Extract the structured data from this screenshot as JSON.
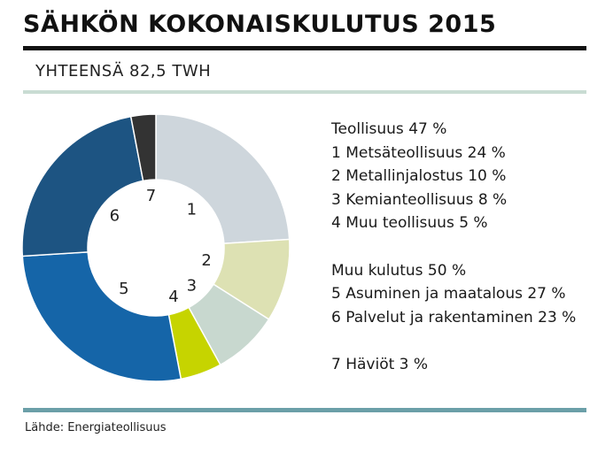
{
  "title": "SÄHKÖN KOKONAISKULUTUS 2015",
  "subtitle": "YHTEENSÄ 82,5 TWH",
  "source": "Lähde: Energiateollisuus",
  "legend": {
    "industry_total": "Teollisuus 47 %",
    "item1": "1 Metsäteollisuus 24 %",
    "item2": "2 Metallinjalostus 10 %",
    "item3": "3 Kemianteollisuus 8 %",
    "item4": "4 Muu teollisuus 5 %",
    "other_total": "Muu kulutus 50 %",
    "item5": "5 Asuminen ja maatalous 27 %",
    "item6": "6 Palvelut ja rakentaminen 23 %",
    "item7": "7 Häviöt 3 %"
  },
  "chart_data": {
    "type": "pie",
    "subtype": "donut",
    "title": "SÄHKÖN KOKONAISKULUTUS 2015",
    "subtitle": "YHTEENSÄ 82,5 TWH",
    "unit": "%",
    "slices": [
      {
        "label": "1",
        "name": "Metsäteollisuus",
        "value": 24,
        "color": "#ced6dc"
      },
      {
        "label": "2",
        "name": "Metallinjalostus",
        "value": 10,
        "color": "#dde1b3"
      },
      {
        "label": "3",
        "name": "Kemianteollisuus",
        "value": 8,
        "color": "#c8d8cf"
      },
      {
        "label": "4",
        "name": "Muu teollisuus",
        "value": 5,
        "color": "#c6d400"
      },
      {
        "label": "5",
        "name": "Asuminen ja maatalous",
        "value": 27,
        "color": "#1565a8"
      },
      {
        "label": "6",
        "name": "Palvelut ja rakentaminen",
        "value": 23,
        "color": "#1d5482"
      },
      {
        "label": "7",
        "name": "Häviöt",
        "value": 3,
        "color": "#333333"
      }
    ],
    "groups": [
      {
        "name": "Teollisuus",
        "value": 47
      },
      {
        "name": "Muu kulutus",
        "value": 50
      }
    ]
  }
}
